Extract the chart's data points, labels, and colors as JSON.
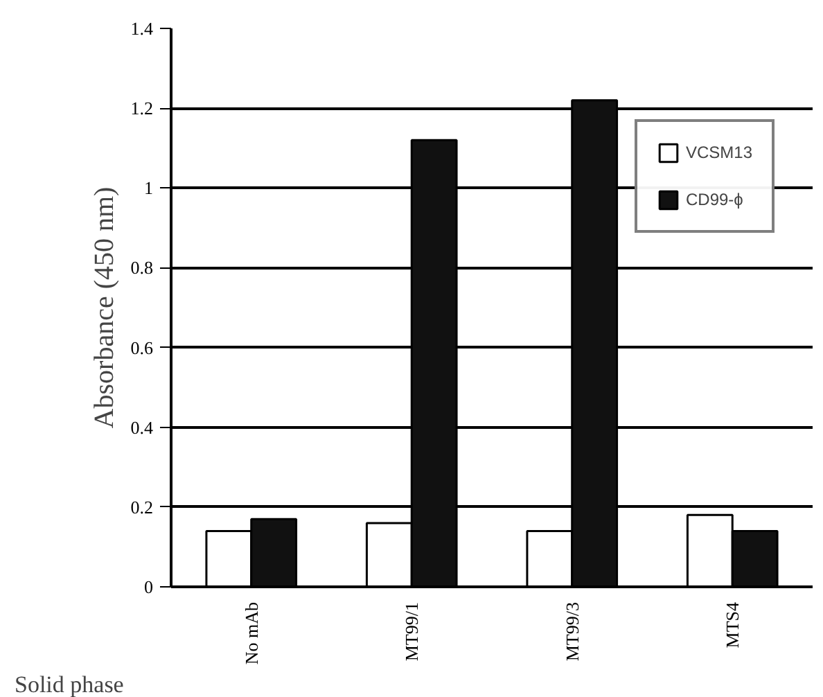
{
  "chart_data": {
    "type": "bar",
    "xlabel": "Solid phase",
    "ylabel": "Absorbance (450 nm)",
    "categories": [
      "No mAb",
      "MT99/1",
      "MT99/3",
      "MTS4"
    ],
    "series": [
      {
        "name": "VCSM13",
        "color": "#ffffff",
        "values": [
          0.14,
          0.16,
          0.14,
          0.18
        ]
      },
      {
        "name": "CD99-ϕ",
        "color": "#111111",
        "values": [
          0.17,
          1.12,
          1.22,
          0.14
        ]
      }
    ],
    "ylim": [
      0,
      1.4
    ],
    "yticks": [
      0,
      0.2,
      0.4,
      0.6,
      0.8,
      1,
      1.2,
      1.4
    ],
    "grid": "y",
    "legend": "top right"
  }
}
